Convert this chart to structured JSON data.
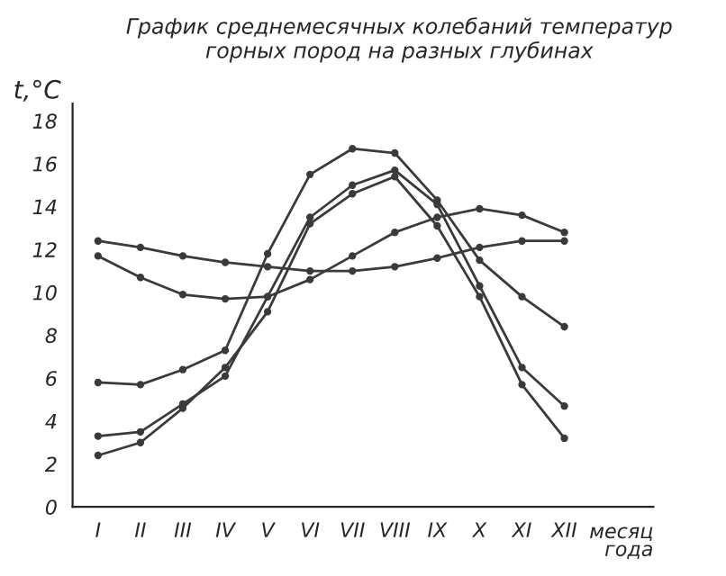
{
  "chart_data": {
    "type": "line",
    "title": "График среднемесячных колебаний температур\nгорных пород на разных глубинах",
    "xlabel": "месяц\nгода",
    "ylabel": "t,°C",
    "categories": [
      "I",
      "II",
      "III",
      "IV",
      "V",
      "VI",
      "VII",
      "VIII",
      "IX",
      "X",
      "XI",
      "XII"
    ],
    "series": [
      {
        "color": "#3a3a3a",
        "values": [
          12.4,
          12.1,
          11.7,
          11.4,
          11.2,
          11.0,
          11.0,
          11.2,
          11.6,
          12.1,
          12.4,
          12.4
        ]
      },
      {
        "color": "#3a3a3a",
        "values": [
          11.7,
          10.7,
          9.9,
          9.7,
          9.8,
          10.6,
          11.7,
          12.8,
          13.5,
          13.9,
          13.6,
          12.8
        ]
      },
      {
        "color": "#3a3a3a",
        "values": [
          5.8,
          5.7,
          6.4,
          7.3,
          11.8,
          15.5,
          16.7,
          16.5,
          14.3,
          11.5,
          9.8,
          8.4
        ]
      },
      {
        "color": "#3a3a3a",
        "values": [
          3.3,
          3.5,
          4.8,
          6.1,
          9.8,
          13.5,
          15.0,
          15.7,
          14.1,
          10.3,
          6.5,
          4.7
        ]
      },
      {
        "color": "#3a3a3a",
        "values": [
          2.4,
          3.0,
          4.6,
          6.5,
          9.1,
          13.2,
          14.6,
          15.4,
          13.1,
          9.8,
          5.7,
          3.2
        ]
      }
    ],
    "ylim": [
      0,
      18.8
    ],
    "yticks": [
      0,
      2,
      4,
      6,
      8,
      10,
      12,
      14,
      16,
      18
    ],
    "grid": false,
    "legend": false,
    "marker": "circle",
    "line_style": "solid"
  }
}
